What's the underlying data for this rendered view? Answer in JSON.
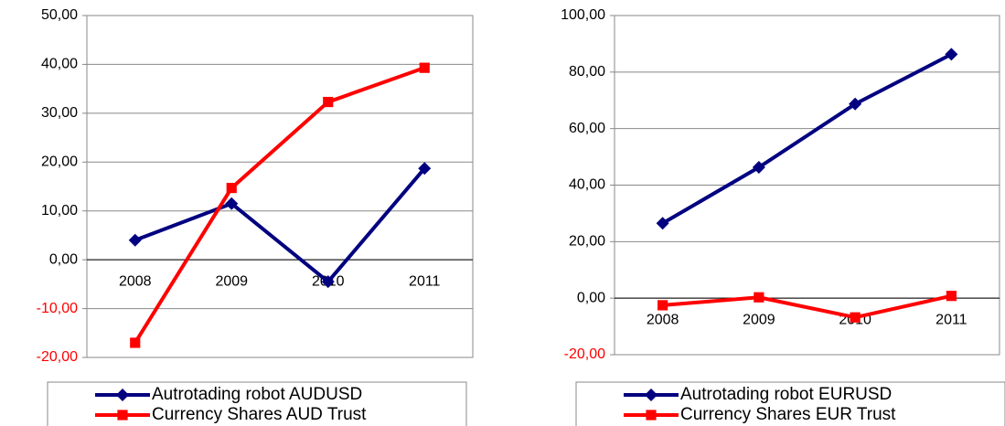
{
  "chart_data": [
    {
      "type": "line",
      "categories": [
        "2008",
        "2009",
        "2010",
        "2011"
      ],
      "series": [
        {
          "name": "Autrotading robot AUDUSD",
          "color": "#000080",
          "marker": "diamond",
          "values": [
            4,
            11.5,
            -4.5,
            18.7
          ]
        },
        {
          "name": "Currency Shares AUD Trust",
          "color": "#ff0000",
          "marker": "square",
          "values": [
            -17,
            14.7,
            32.3,
            39.3
          ]
        }
      ],
      "ylim": [
        -20,
        50
      ],
      "yticks": [
        {
          "value": -20,
          "label": "-20,00"
        },
        {
          "value": -10,
          "label": "-10,00"
        },
        {
          "value": 0,
          "label": "0,00"
        },
        {
          "value": 10,
          "label": "10,00"
        },
        {
          "value": 20,
          "label": "20,00"
        },
        {
          "value": 30,
          "label": "30,00"
        },
        {
          "value": 40,
          "label": "40,00"
        },
        {
          "value": 50,
          "label": "50,00"
        }
      ],
      "grid": true,
      "legend": "bottom"
    },
    {
      "type": "line",
      "categories": [
        "2008",
        "2009",
        "2010",
        "2011"
      ],
      "series": [
        {
          "name": "Autrotading robot EURUSD",
          "color": "#000080",
          "marker": "diamond",
          "values": [
            26.5,
            46.3,
            68.7,
            86.3
          ]
        },
        {
          "name": "Currency Shares EUR Trust",
          "color": "#ff0000",
          "marker": "square",
          "values": [
            -2.5,
            0.3,
            -6.8,
            0.8
          ]
        }
      ],
      "ylim": [
        -20,
        100
      ],
      "yticks": [
        {
          "value": -20,
          "label": "-20,00"
        },
        {
          "value": 0,
          "label": "0,00"
        },
        {
          "value": 20,
          "label": "20,00"
        },
        {
          "value": 40,
          "label": "40,00"
        },
        {
          "value": 60,
          "label": "60,00"
        },
        {
          "value": 80,
          "label": "80,00"
        },
        {
          "value": 100,
          "label": "100,00"
        }
      ],
      "grid": true,
      "legend": "bottom"
    }
  ]
}
